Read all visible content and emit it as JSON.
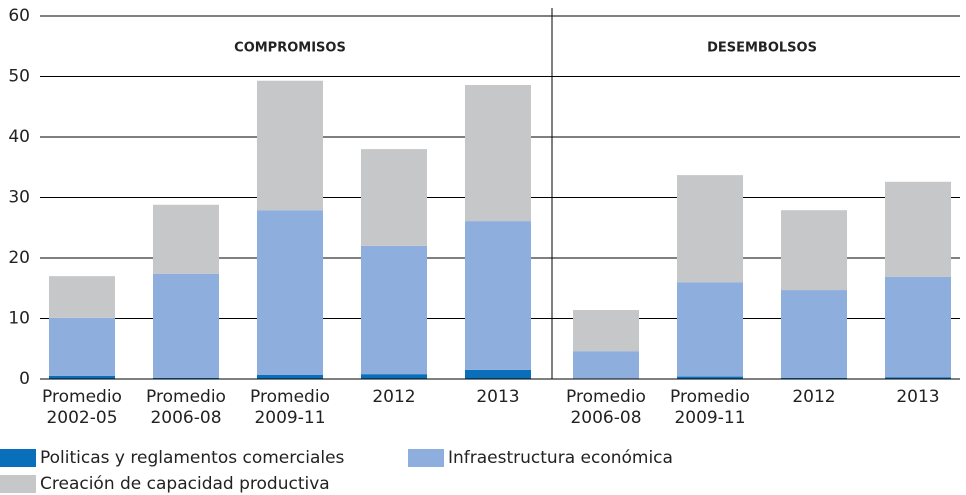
{
  "chart_data": {
    "type": "stacked-bar",
    "categories": [
      [
        "Promedio",
        "2002-05"
      ],
      [
        "Promedio",
        "2006-08"
      ],
      [
        "Promedio",
        "2009-11"
      ],
      [
        "2012"
      ],
      [
        "2013"
      ],
      [
        "Promedio",
        "2006-08"
      ],
      [
        "Promedio",
        "2009-11"
      ],
      [
        "2012"
      ],
      [
        "2013"
      ]
    ],
    "groups": [
      "COMPROMISOS",
      "DESEMBOLSOS"
    ],
    "series": [
      {
        "name": "Politicas y reglamentos comerciales",
        "color": "#0a6fba",
        "values": [
          0.5,
          0.2,
          0.7,
          0.8,
          1.5,
          0.1,
          0.4,
          0.2,
          0.3
        ]
      },
      {
        "name": "Infraestructura económica",
        "color": "#8eaedd",
        "values": [
          9.6,
          17.2,
          27.2,
          21.2,
          24.6,
          4.5,
          15.6,
          14.5,
          16.6
        ]
      },
      {
        "name": "Creación de capacidad productiva",
        "color": "#c6c7c9",
        "values": [
          6.9,
          11.4,
          21.4,
          16.0,
          22.5,
          6.8,
          17.7,
          13.2,
          15.7
        ]
      }
    ],
    "ylim": [
      0,
      60
    ],
    "yticks": [
      0,
      10,
      20,
      30,
      40,
      50,
      60
    ],
    "grid": true
  }
}
